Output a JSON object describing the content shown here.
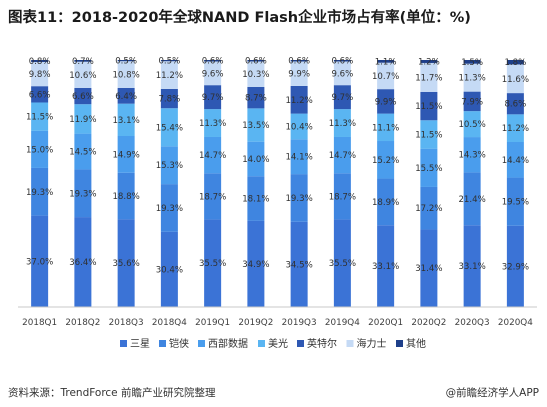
{
  "header": {
    "title": "图表11：2018-2020年全球NAND Flash企业市场占有率(单位：%)"
  },
  "footer": {
    "source": "资料来源：TrendForce 前瞻产业研究院整理",
    "brand": "@前瞻经济学人APP"
  },
  "chart_data": {
    "type": "bar",
    "stacked": true,
    "percent_stacked": true,
    "categories": [
      "2018Q1",
      "2018Q2",
      "2018Q3",
      "2018Q4",
      "2019Q1",
      "2019Q2",
      "2019Q3",
      "2019Q4",
      "2020Q1",
      "2020Q2",
      "2020Q3",
      "2020Q4"
    ],
    "series": [
      {
        "name": "三星",
        "color": "#3b73d6",
        "values": [
          37.0,
          36.4,
          35.6,
          30.4,
          35.5,
          34.9,
          34.5,
          35.5,
          33.1,
          31.4,
          33.1,
          32.9
        ],
        "labels": [
          "37.0%",
          "36.4%",
          "35.6%",
          "30.4%",
          "35.5%",
          "34.9%",
          "34.5%",
          "35.5%",
          "33.1%",
          "31.4%",
          "33.1%",
          "32.9%"
        ]
      },
      {
        "name": "铠侠",
        "color": "#3f85e0",
        "values": [
          19.3,
          19.3,
          18.8,
          19.3,
          18.7,
          18.1,
          19.3,
          18.7,
          18.9,
          17.2,
          21.4,
          19.5
        ],
        "labels": [
          "19.3%",
          "19.3%",
          "18.8%",
          "19.3%",
          "18.7%",
          "18.1%",
          "19.3%",
          "18.7%",
          "18.9%",
          "17.2%",
          "21.4%",
          "19.5%"
        ]
      },
      {
        "name": "西部数据",
        "color": "#4a9ded",
        "values": [
          15.0,
          14.5,
          14.9,
          15.3,
          14.7,
          14.0,
          14.1,
          14.7,
          15.2,
          15.5,
          14.3,
          14.4
        ],
        "labels": [
          "15.0%",
          "14.5%",
          "14.9%",
          "15.3%",
          "14.7%",
          "14.0%",
          "14.1%",
          "14.7%",
          "15.2%",
          "15.5%",
          "14.3%",
          "14.4%"
        ]
      },
      {
        "name": "美光",
        "color": "#5ab5f2",
        "values": [
          11.5,
          11.9,
          13.1,
          15.4,
          11.3,
          13.5,
          10.4,
          11.3,
          11.1,
          11.5,
          10.5,
          11.2
        ],
        "labels": [
          "11.5%",
          "11.9%",
          "13.1%",
          "15.4%",
          "11.3%",
          "13.5%",
          "10.4%",
          "11.3%",
          "11.1%",
          "11.5%",
          "10.5%",
          "11.2%"
        ]
      },
      {
        "name": "英特尔",
        "color": "#2e58b3",
        "values": [
          6.6,
          6.6,
          6.4,
          7.8,
          9.7,
          8.7,
          11.2,
          9.7,
          9.9,
          11.5,
          7.9,
          8.6
        ],
        "labels": [
          "6.6%",
          "6.6%",
          "6.4%",
          "7.8%",
          "9.7%",
          "8.7%",
          "11.2%",
          "9.7%",
          "9.9%",
          "11.5%",
          "7.9%",
          "8.6%"
        ]
      },
      {
        "name": "海力士",
        "color": "#c5daf5",
        "values": [
          9.8,
          10.6,
          10.8,
          11.2,
          9.6,
          10.3,
          9.9,
          9.6,
          10.7,
          11.7,
          11.3,
          11.6
        ],
        "labels": [
          "9.8%",
          "10.6%",
          "10.8%",
          "11.2%",
          "9.6%",
          "10.3%",
          "9.9%",
          "9.6%",
          "10.7%",
          "11.7%",
          "11.3%",
          "11.6%"
        ]
      },
      {
        "name": "其他",
        "color": "#1e3f8a",
        "values": [
          0.8,
          0.7,
          0.5,
          0.5,
          0.6,
          0.6,
          0.6,
          0.6,
          1.1,
          1.2,
          1.5,
          1.8
        ],
        "labels": [
          "0.8%",
          "0.7%",
          "0.5%",
          "0.5%",
          "0.6%",
          "0.6%",
          "0.6%",
          "0.6%",
          "1.1%",
          "1.2%",
          "1.5%",
          "1.8%"
        ]
      }
    ],
    "title": "图表11：2018-2020年全球NAND Flash企业市场占有率(单位：%)",
    "xlabel": "",
    "ylabel": "",
    "ylim": [
      0,
      100
    ],
    "grid": false,
    "legend_position": "bottom"
  }
}
